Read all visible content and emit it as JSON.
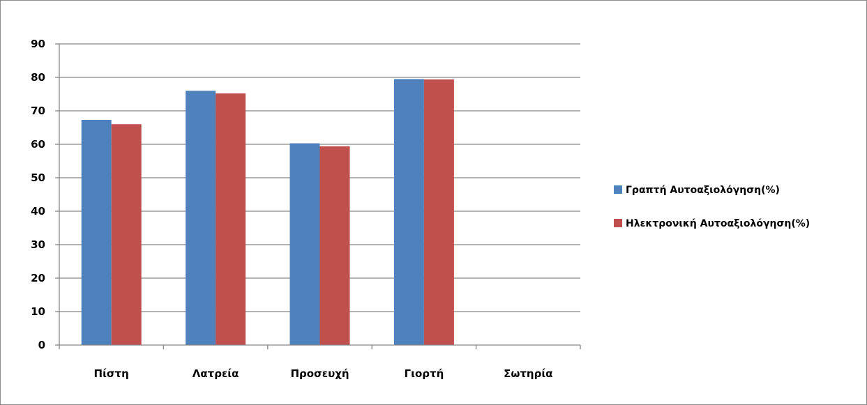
{
  "chart_data": {
    "type": "bar",
    "title": "",
    "xlabel": "",
    "ylabel": "",
    "categories": [
      "Πίστη",
      "Λατρεία",
      "Προσευχή",
      "Γιορτή",
      "Σωτηρία"
    ],
    "series": [
      {
        "name": "Γραπτή Αυτοαξιολόγηση(%)",
        "color": "#4f81bd",
        "values": [
          67.3,
          76.0,
          60.3,
          79.5,
          null
        ]
      },
      {
        "name": "Ηλεκτρονική Αυτοαξιολόγηση(%)",
        "color": "#c0504d",
        "values": [
          66.0,
          75.2,
          59.4,
          79.4,
          null
        ]
      }
    ],
    "ylim": [
      0,
      90
    ],
    "yticks": [
      0,
      10,
      20,
      30,
      40,
      50,
      60,
      70,
      80,
      90
    ],
    "grid": true,
    "legend": "right"
  }
}
